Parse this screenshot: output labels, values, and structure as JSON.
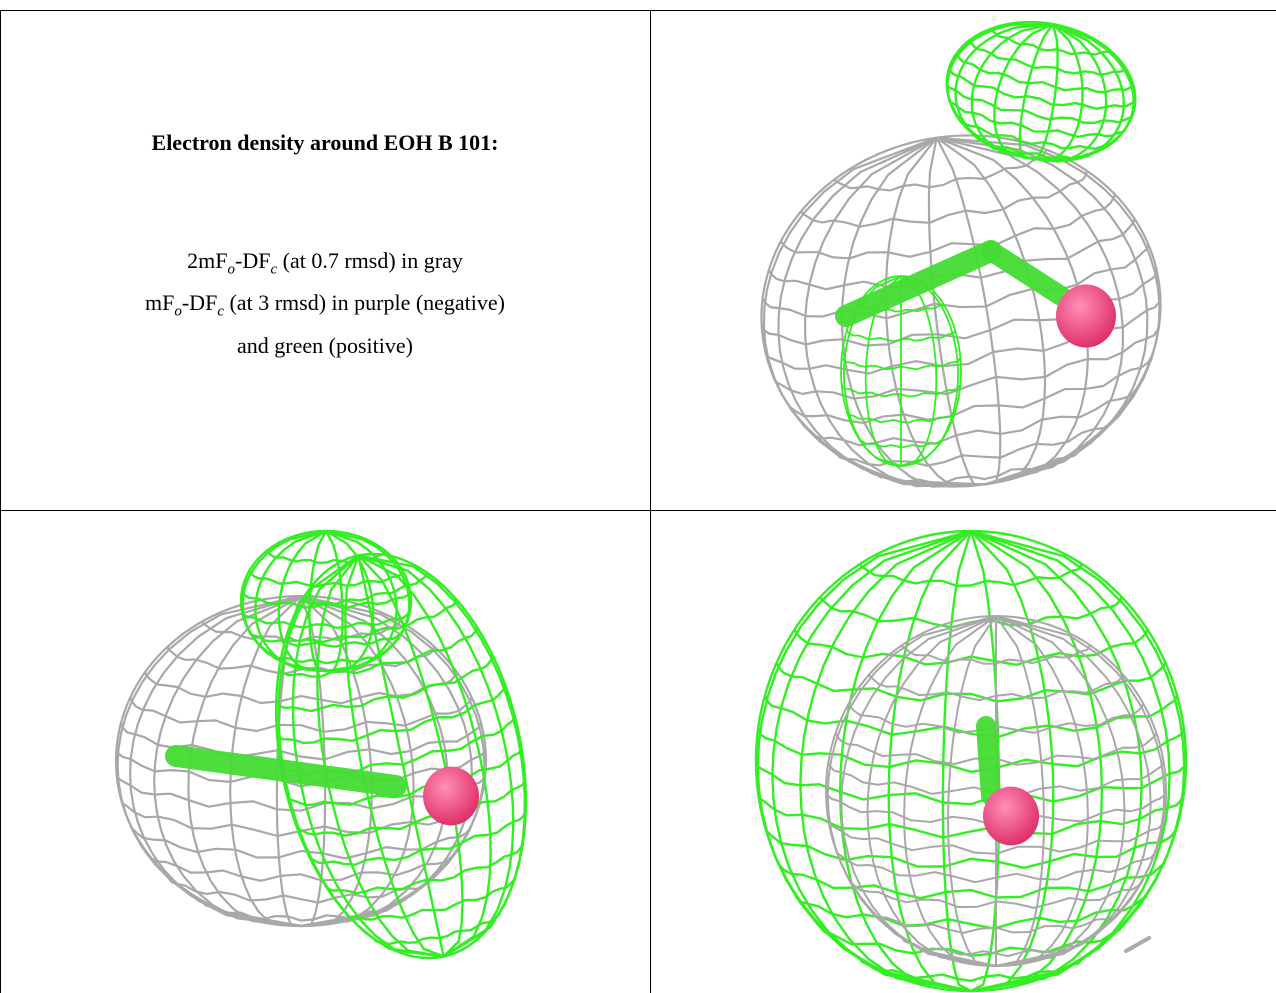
{
  "caption": {
    "title": "Electron density around EOH B 101:",
    "line1_prefix": "2mF",
    "line1_sub1": "o",
    "line1_mid": "-DF",
    "line1_sub2": "c",
    "line1_suffix": " (at 0.7 rmsd) in gray",
    "line2_prefix": "mF",
    "line2_sub1": "o",
    "line2_mid": "-DF",
    "line2_sub2": "c",
    "line2_suffix": " (at 3 rmsd) in purple (negative)",
    "line3": "and green (positive)"
  },
  "colors": {
    "gray_mesh": "#a8a8a8",
    "green_mesh": "#33ee22",
    "ligand_bond": "#44dd33",
    "oxygen": "#e0306a",
    "border": "#000000"
  },
  "panels": [
    {
      "id": "view-top-right",
      "icon": "density-mesh-view-1"
    },
    {
      "id": "view-bottom-left",
      "icon": "density-mesh-view-2"
    },
    {
      "id": "view-bottom-right",
      "icon": "density-mesh-view-3"
    }
  ]
}
